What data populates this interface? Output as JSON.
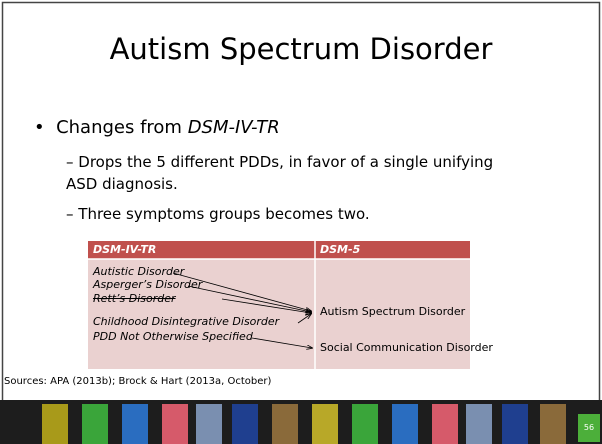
{
  "header": {
    "title": "Autism Spectrum Disorder"
  },
  "bullet": {
    "lead": "Changes from ",
    "lead_italic": "DSM-IV-TR"
  },
  "sub_bullets": [
    "Drops the 5 different PDDs, in favor of a single unifying ASD diagnosis.",
    "Three symptoms groups becomes two."
  ],
  "table": {
    "headers": [
      "DSM-IV-TR",
      "DSM-5"
    ],
    "left": [
      "Autistic Disorder",
      "Asperger’s Disorder",
      "Rett’s Disorder",
      "Childhood Disintegrative Disorder",
      "PDD Not Otherwise Specified"
    ],
    "right": [
      "Autism Spectrum Disorder",
      "Social Communication Disorder"
    ]
  },
  "source": "Sources: APA (2013b); Brock & Hart (2013a, October)",
  "page_number": "56"
}
